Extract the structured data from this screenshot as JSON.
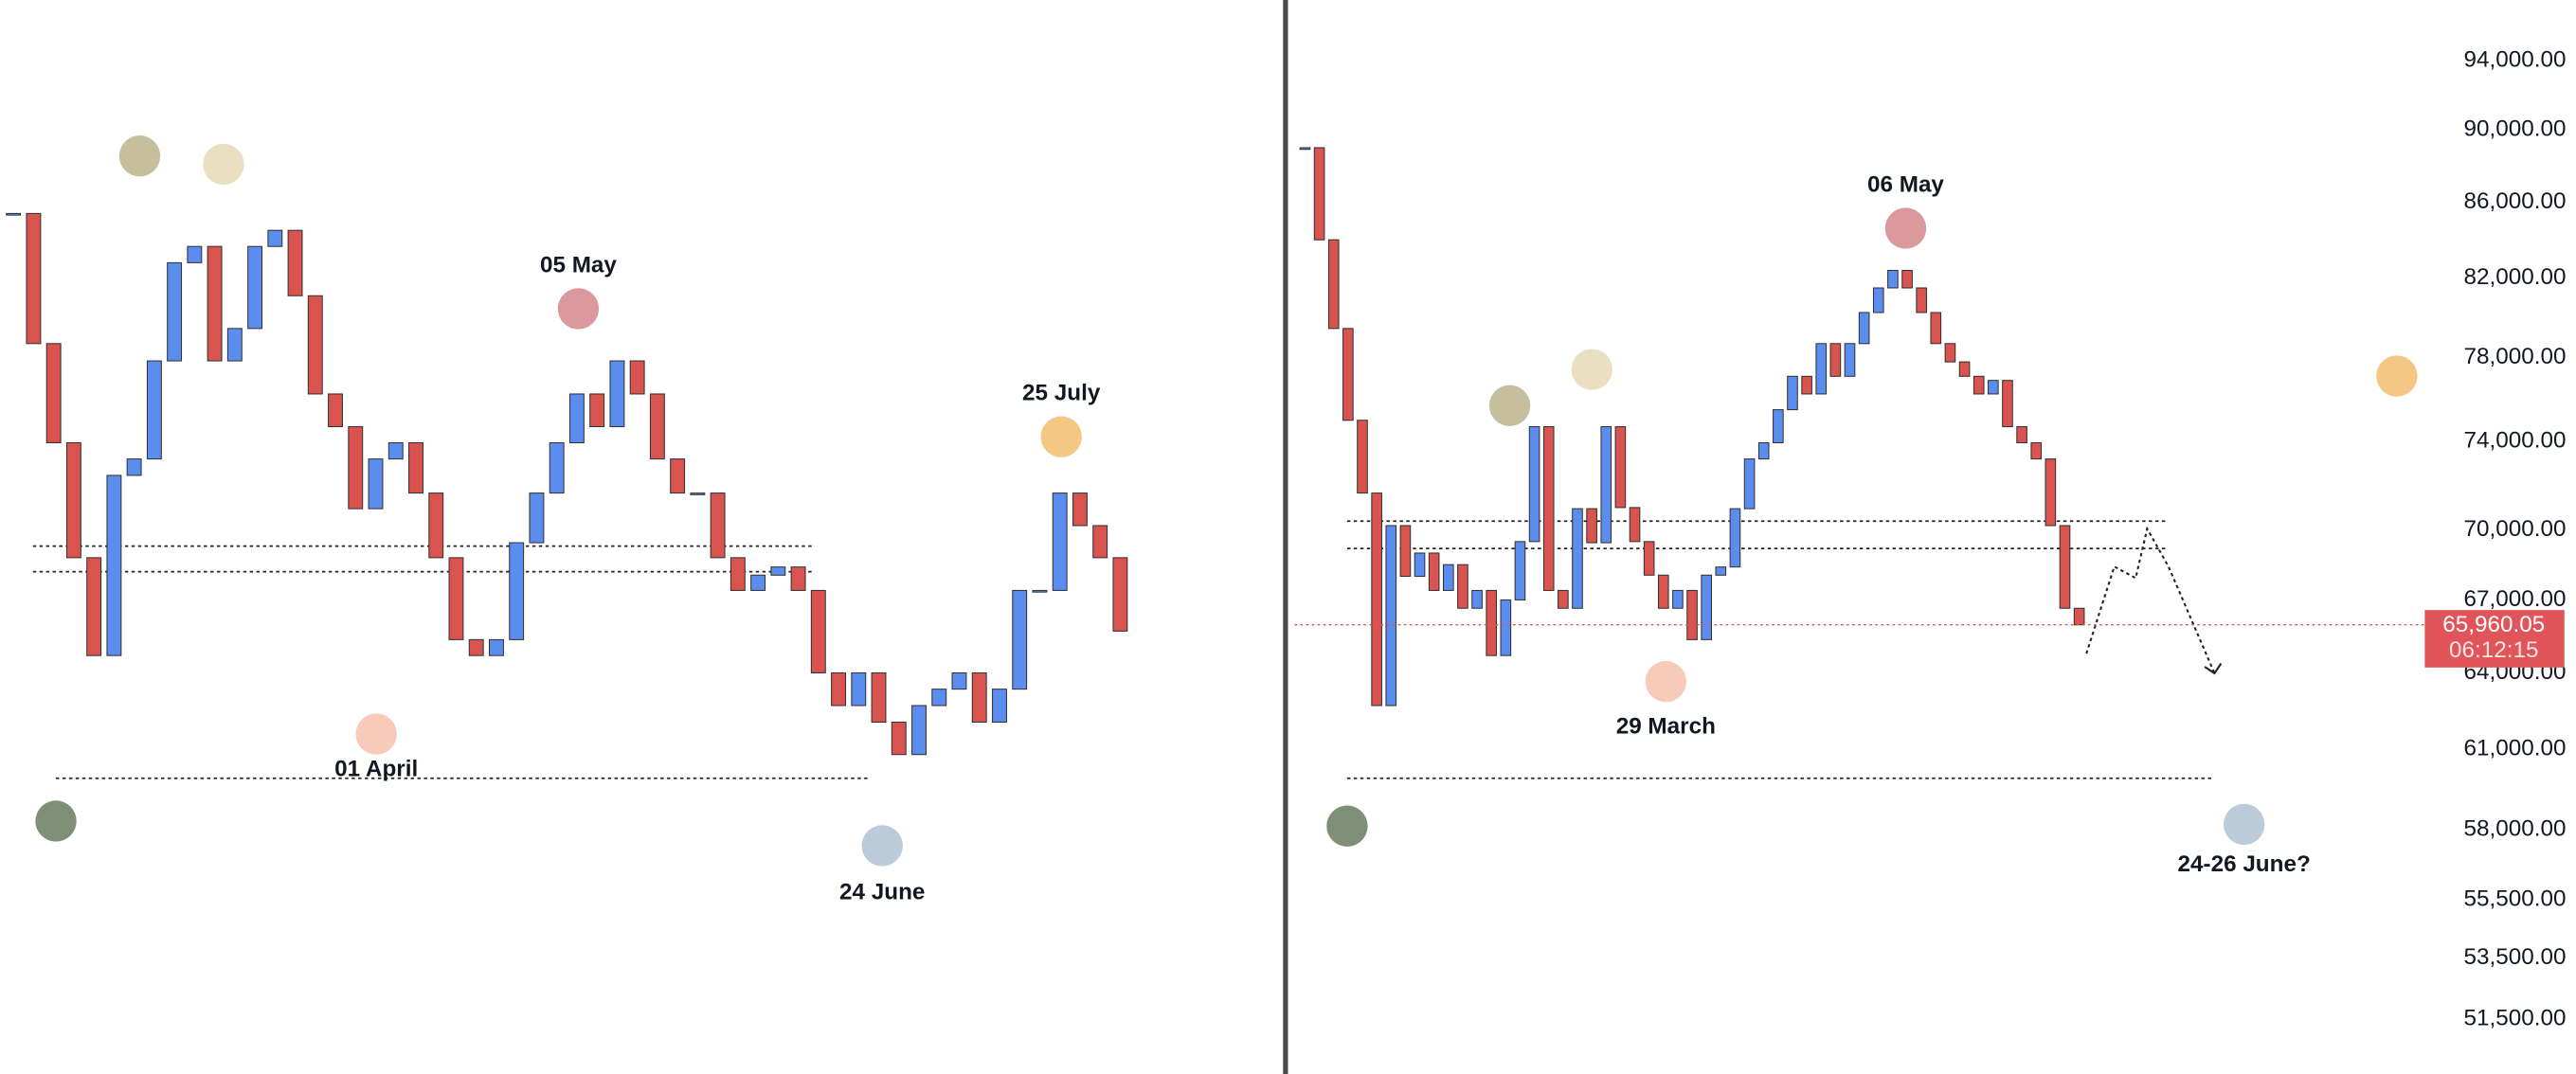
{
  "chart_data": [
    {
      "type": "candlestick",
      "log_scale": true,
      "ylim": [
        49750,
        97650
      ],
      "up_color": "#5b8def",
      "down_color": "#d9534f",
      "closes": [
        85400,
        78700,
        73950,
        68800,
        64700,
        72450,
        73200,
        77850,
        82800,
        83650,
        77850,
        79450,
        83650,
        84500,
        81100,
        76250,
        74700,
        70950,
        73200,
        73950,
        71650,
        68800,
        65350,
        64700,
        65350,
        69450,
        71650,
        73950,
        76250,
        74700,
        77850,
        76250,
        73200,
        71650,
        71650,
        68800,
        67400,
        68050,
        68400,
        67400,
        64000,
        62700,
        64000,
        62050,
        60800,
        62700,
        63350,
        64000,
        62050,
        63350,
        67400,
        67400,
        71650,
        70200,
        68800,
        65700
      ],
      "levels": [
        69300,
        68200,
        59900
      ],
      "annotations": [
        {
          "color": "#c5bf9e"
        },
        {
          "color": "#ebdfc1"
        },
        {
          "label": "05 May",
          "color": "#d9999d"
        },
        {
          "label": "25 July",
          "color": "#f5c785"
        },
        {
          "label": "01 April",
          "color": "#f7cbb8"
        },
        {
          "color": "#7d8f77"
        },
        {
          "label": "24 June",
          "color": "#bccbd9"
        }
      ]
    },
    {
      "type": "candlestick",
      "log_scale": true,
      "ylim": [
        49750,
        97650
      ],
      "up_color": "#5b8def",
      "down_color": "#d9534f",
      "closes": [
        89000,
        84000,
        79450,
        75000,
        71650,
        62700,
        70200,
        68000,
        69000,
        67400,
        68500,
        66650,
        67400,
        64700,
        67000,
        69500,
        74700,
        67400,
        66650,
        70950,
        69450,
        74700,
        71000,
        69500,
        68050,
        66650,
        67400,
        65350,
        68050,
        68400,
        70950,
        73200,
        73950,
        75500,
        77100,
        76250,
        78700,
        77100,
        78700,
        80250,
        81500,
        82400,
        81500,
        80250,
        78700,
        77800,
        77100,
        76250,
        76900,
        74700,
        73950,
        73200,
        70200,
        66650,
        65960
      ],
      "levels": [
        70400,
        69200,
        59900
      ],
      "yticks": [
        {
          "value": 94000,
          "label": "94,000.00"
        },
        {
          "value": 90000,
          "label": "90,000.00"
        },
        {
          "value": 86000,
          "label": "86,000.00"
        },
        {
          "value": 82000,
          "label": "82,000.00"
        },
        {
          "value": 78000,
          "label": "78,000.00"
        },
        {
          "value": 74000,
          "label": "74,000.00"
        },
        {
          "value": 70000,
          "label": "70,000.00"
        },
        {
          "value": 67000,
          "label": "67,000.00"
        },
        {
          "value": 64000,
          "label": "64,000.00"
        },
        {
          "value": 61000,
          "label": "61,000.00"
        },
        {
          "value": 58000,
          "label": "58,000.00"
        },
        {
          "value": 55500,
          "label": "55,500.00"
        },
        {
          "value": 53500,
          "label": "53,500.00"
        },
        {
          "value": 51500,
          "label": "51,500.00"
        }
      ],
      "last_price": {
        "value": 65960.05,
        "label": "65,960.05"
      },
      "countdown": "06:12:15",
      "last_price_color": "#e0545a",
      "annotations": [
        {
          "color": "#c5bf9e"
        },
        {
          "color": "#ebdfc1"
        },
        {
          "label": "06 May",
          "color": "#d9999d"
        },
        {
          "color": "#f5c785"
        },
        {
          "label": "29 March",
          "color": "#f7cbb8"
        },
        {
          "color": "#7d8f77"
        },
        {
          "label": "24-26 June?",
          "color": "#bccbd9"
        }
      ]
    }
  ]
}
